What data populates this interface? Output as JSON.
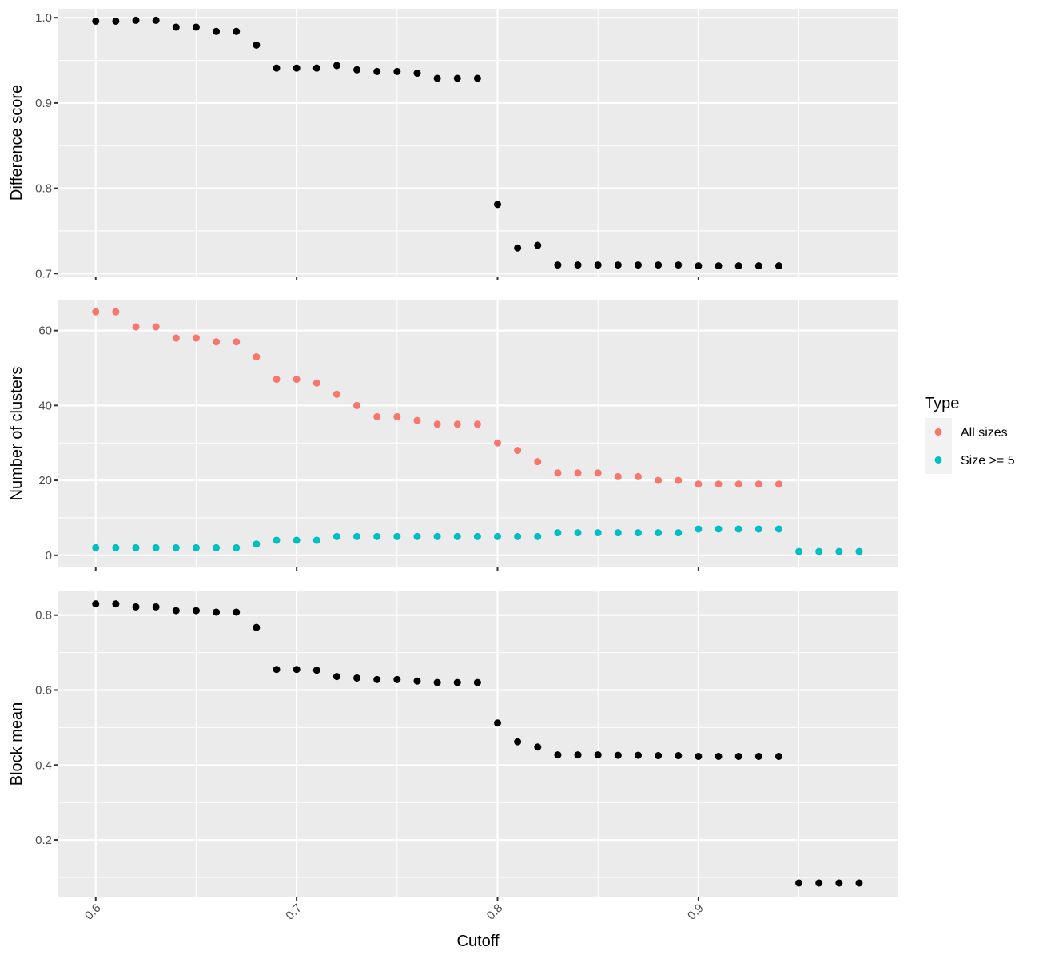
{
  "chart_data": {
    "type": "scatter",
    "xlabel": "Cutoff",
    "x_ticks": [
      0.6,
      0.7,
      0.8,
      0.9
    ],
    "x_tick_labels": [
      "0.6",
      "0.7",
      "0.8",
      "0.9"
    ],
    "xlim": [
      0.581,
      0.9995
    ],
    "legend": {
      "title": "Type",
      "position": "right",
      "entries": [
        {
          "label": "All sizes",
          "color": "#F8766D"
        },
        {
          "label": "Size >= 5",
          "color": "#00BFC4"
        }
      ]
    },
    "panels": [
      {
        "ylabel": "Difference score",
        "ylim": [
          0.6965,
          1.0105
        ],
        "y_ticks": [
          0.7,
          0.8,
          0.9,
          1.0
        ],
        "y_tick_labels": [
          "0.7",
          "0.8",
          "0.9",
          "1.0"
        ],
        "series": [
          {
            "color": "#000000",
            "x": [
              0.6,
              0.61,
              0.62,
              0.63,
              0.64,
              0.65,
              0.66,
              0.67,
              0.68,
              0.69,
              0.7,
              0.71,
              0.72,
              0.73,
              0.74,
              0.75,
              0.76,
              0.77,
              0.78,
              0.79,
              0.8,
              0.81,
              0.82,
              0.83,
              0.84,
              0.85,
              0.86,
              0.87,
              0.88,
              0.89,
              0.9,
              0.91,
              0.92,
              0.93,
              0.94
            ],
            "y": [
              0.996,
              0.996,
              0.997,
              0.997,
              0.989,
              0.989,
              0.984,
              0.984,
              0.968,
              0.941,
              0.941,
              0.941,
              0.944,
              0.939,
              0.937,
              0.937,
              0.935,
              0.929,
              0.929,
              0.929,
              0.781,
              0.73,
              0.733,
              0.71,
              0.71,
              0.71,
              0.71,
              0.71,
              0.71,
              0.71,
              0.709,
              0.709,
              0.709,
              0.709,
              0.709
            ]
          }
        ]
      },
      {
        "ylabel": "Number of clusters",
        "ylim": [
          -3.25,
          68.25
        ],
        "y_ticks": [
          0,
          20,
          40,
          60
        ],
        "y_tick_labels": [
          "0",
          "20",
          "40",
          "60"
        ],
        "series": [
          {
            "name": "All sizes",
            "color": "#F8766D",
            "x": [
              0.6,
              0.61,
              0.62,
              0.63,
              0.64,
              0.65,
              0.66,
              0.67,
              0.68,
              0.69,
              0.7,
              0.71,
              0.72,
              0.73,
              0.74,
              0.75,
              0.76,
              0.77,
              0.78,
              0.79,
              0.8,
              0.81,
              0.82,
              0.83,
              0.84,
              0.85,
              0.86,
              0.87,
              0.88,
              0.89,
              0.9,
              0.91,
              0.92,
              0.93,
              0.94
            ],
            "y": [
              65,
              65,
              61,
              61,
              58,
              58,
              57,
              57,
              53,
              47,
              47,
              46,
              43,
              40,
              37,
              37,
              36,
              35,
              35,
              35,
              30,
              28,
              25,
              22,
              22,
              22,
              21,
              21,
              20,
              20,
              19,
              19,
              19,
              19,
              19
            ]
          },
          {
            "name": "Size >= 5",
            "color": "#00BFC4",
            "x": [
              0.6,
              0.61,
              0.62,
              0.63,
              0.64,
              0.65,
              0.66,
              0.67,
              0.68,
              0.69,
              0.7,
              0.71,
              0.72,
              0.73,
              0.74,
              0.75,
              0.76,
              0.77,
              0.78,
              0.79,
              0.8,
              0.81,
              0.82,
              0.83,
              0.84,
              0.85,
              0.86,
              0.87,
              0.88,
              0.89,
              0.9,
              0.91,
              0.92,
              0.93,
              0.94,
              0.95,
              0.96,
              0.97,
              0.98
            ],
            "y": [
              2,
              2,
              2,
              2,
              2,
              2,
              2,
              2,
              3,
              4,
              4,
              4,
              5,
              5,
              5,
              5,
              5,
              5,
              5,
              5,
              5,
              5,
              5,
              6,
              6,
              6,
              6,
              6,
              6,
              6,
              7,
              7,
              7,
              7,
              7,
              1,
              1,
              1,
              1
            ]
          }
        ]
      },
      {
        "ylabel": "Block mean",
        "ylim": [
          0.0465,
          0.8655
        ],
        "y_ticks": [
          0.2,
          0.4,
          0.6,
          0.8
        ],
        "y_tick_labels": [
          "0.2",
          "0.4",
          "0.6",
          "0.8"
        ],
        "series": [
          {
            "color": "#000000",
            "x": [
              0.6,
              0.61,
              0.62,
              0.63,
              0.64,
              0.65,
              0.66,
              0.67,
              0.68,
              0.69,
              0.7,
              0.71,
              0.72,
              0.73,
              0.74,
              0.75,
              0.76,
              0.77,
              0.78,
              0.79,
              0.8,
              0.81,
              0.82,
              0.83,
              0.84,
              0.85,
              0.86,
              0.87,
              0.88,
              0.89,
              0.9,
              0.91,
              0.92,
              0.93,
              0.94,
              0.95,
              0.96,
              0.97,
              0.98
            ],
            "y": [
              0.83,
              0.83,
              0.822,
              0.822,
              0.812,
              0.812,
              0.808,
              0.808,
              0.767,
              0.655,
              0.655,
              0.653,
              0.636,
              0.632,
              0.628,
              0.628,
              0.624,
              0.62,
              0.62,
              0.62,
              0.512,
              0.462,
              0.448,
              0.427,
              0.427,
              0.427,
              0.426,
              0.426,
              0.425,
              0.425,
              0.423,
              0.423,
              0.423,
              0.423,
              0.423,
              0.085,
              0.085,
              0.085,
              0.085
            ]
          }
        ]
      }
    ]
  }
}
